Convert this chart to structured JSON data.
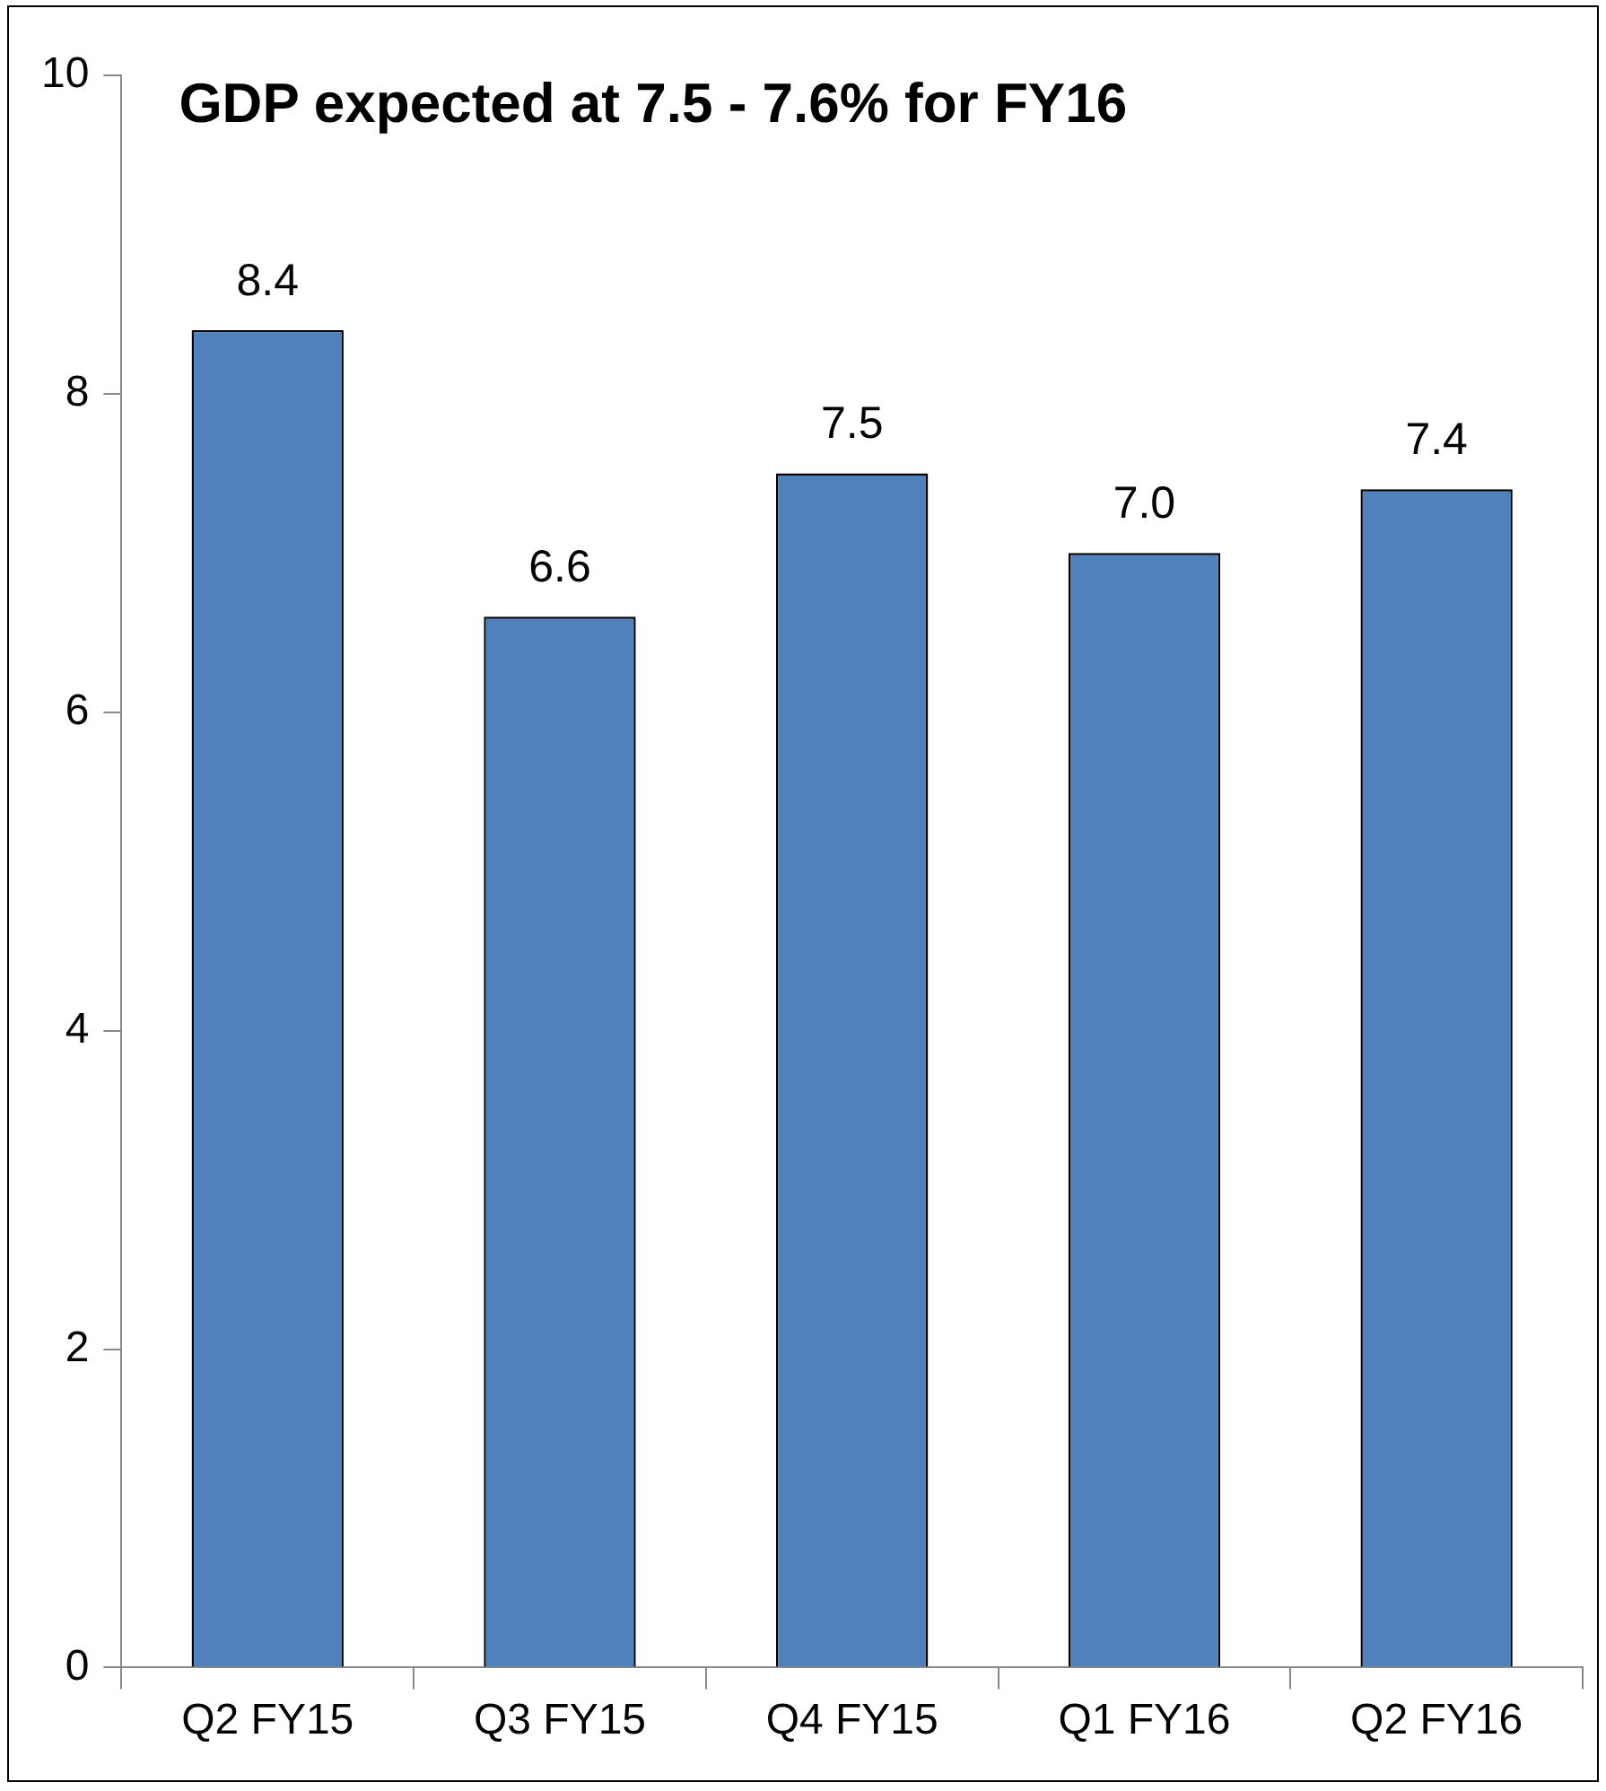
{
  "chart_data": {
    "type": "bar",
    "title": "GDP expected at 7.5 - 7.6% for FY16",
    "categories": [
      "Q2 FY15",
      "Q3 FY15",
      "Q4 FY15",
      "Q1 FY16",
      "Q2 FY16"
    ],
    "values": [
      8.4,
      6.6,
      7.5,
      7.0,
      7.4
    ],
    "value_labels": [
      "8.4",
      "6.6",
      "7.5",
      "7.0",
      "7.4"
    ],
    "color": "#4f81bd",
    "ylim": [
      0,
      10
    ],
    "yticks": [
      0,
      2,
      4,
      6,
      8,
      10
    ],
    "grid": false,
    "legend": false
  }
}
